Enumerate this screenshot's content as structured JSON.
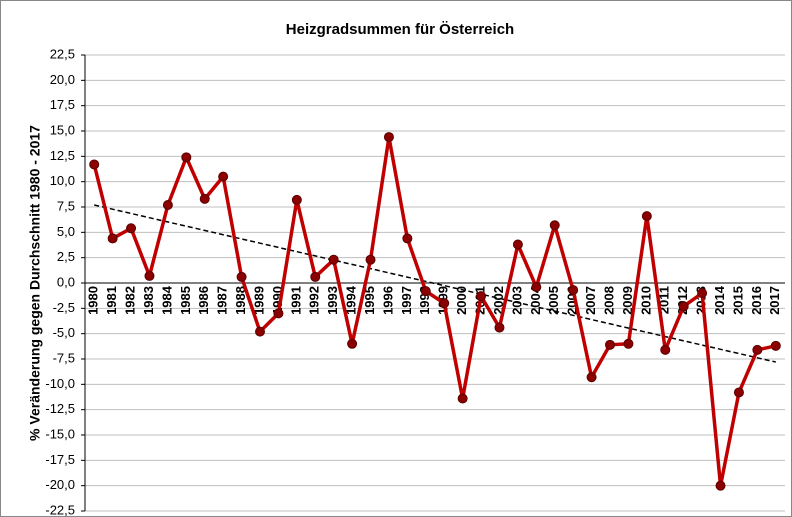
{
  "chart_data": {
    "type": "line",
    "title": "Heizgradsummen  für Österreich",
    "y_label": "% Veränderung gegen Durchschnitt 1980 - 2017",
    "categories": [
      "1980",
      "1981",
      "1982",
      "1983",
      "1984",
      "1985",
      "1986",
      "1987",
      "1988",
      "1989",
      "1990",
      "1991",
      "1992",
      "1993",
      "1994",
      "1995",
      "1996",
      "1997",
      "1998",
      "1999",
      "2000",
      "2001",
      "2002",
      "2003",
      "2004",
      "2005",
      "2006",
      "2007",
      "2008",
      "2009",
      "2010",
      "2011",
      "2012",
      "2013",
      "2014",
      "2015",
      "2016",
      "2017"
    ],
    "series": [
      {
        "color": "#c00000",
        "marker_color": "#8b0000",
        "values": [
          11.7,
          4.4,
          5.4,
          0.7,
          7.7,
          12.4,
          8.3,
          10.5,
          0.6,
          -4.8,
          -3.0,
          8.2,
          0.6,
          2.3,
          -6.0,
          2.3,
          14.4,
          4.4,
          -0.8,
          -2.0,
          -11.4,
          -1.3,
          -4.4,
          3.8,
          -0.4,
          5.7,
          -0.7,
          -9.3,
          -6.1,
          -6.0,
          6.6,
          -6.6,
          -2.3,
          -1.0,
          -20.0,
          -10.8,
          -6.6,
          -6.2
        ]
      }
    ],
    "trendline": {
      "start": 7.7,
      "end": -7.8,
      "color": "#000000"
    },
    "ylim": [
      -22.5,
      22.5
    ],
    "yticks": [
      {
        "value": -22.5,
        "label": "-22,5"
      },
      {
        "value": -20,
        "label": "-20,0"
      },
      {
        "value": -17.5,
        "label": "-17,5"
      },
      {
        "value": -15,
        "label": "-15,0"
      },
      {
        "value": -12.5,
        "label": "-12,5"
      },
      {
        "value": -10,
        "label": "-10,0"
      },
      {
        "value": -7.5,
        "label": "-7,5"
      },
      {
        "value": -5,
        "label": "-5,0"
      },
      {
        "value": -2.5,
        "label": "-2,5"
      },
      {
        "value": 0,
        "label": "0,0"
      },
      {
        "value": 2.5,
        "label": "2,5"
      },
      {
        "value": 5,
        "label": "5,0"
      },
      {
        "value": 7.5,
        "label": "7,5"
      },
      {
        "value": 10,
        "label": "10,0"
      },
      {
        "value": 12.5,
        "label": "12,5"
      },
      {
        "value": 15,
        "label": "15,0"
      },
      {
        "value": 17.5,
        "label": "17,5"
      },
      {
        "value": 20,
        "label": "20,0"
      },
      {
        "value": 22.5,
        "label": "22,5"
      }
    ],
    "grid": true
  }
}
